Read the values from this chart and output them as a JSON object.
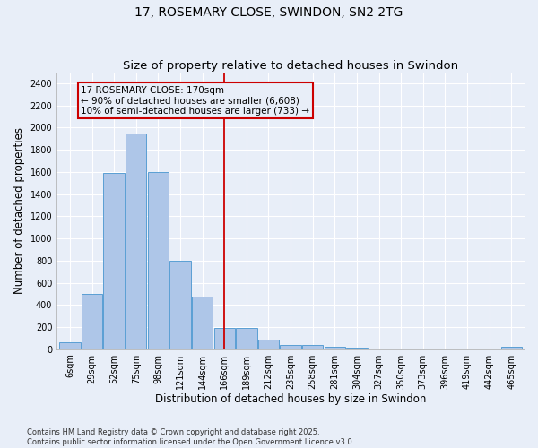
{
  "title": "17, ROSEMARY CLOSE, SWINDON, SN2 2TG",
  "subtitle": "Size of property relative to detached houses in Swindon",
  "xlabel": "Distribution of detached houses by size in Swindon",
  "ylabel": "Number of detached properties",
  "categories": [
    "6sqm",
    "29sqm",
    "52sqm",
    "75sqm",
    "98sqm",
    "121sqm",
    "144sqm",
    "166sqm",
    "189sqm",
    "212sqm",
    "235sqm",
    "258sqm",
    "281sqm",
    "304sqm",
    "327sqm",
    "350sqm",
    "373sqm",
    "396sqm",
    "419sqm",
    "442sqm",
    "465sqm"
  ],
  "values": [
    60,
    500,
    1590,
    1950,
    1600,
    800,
    475,
    190,
    195,
    90,
    40,
    40,
    25,
    15,
    0,
    0,
    0,
    0,
    0,
    0,
    25
  ],
  "bar_color": "#aec6e8",
  "bar_edge_color": "#5a9fd4",
  "vline_index": 7,
  "vline_color": "#cc0000",
  "annotation_text": "17 ROSEMARY CLOSE: 170sqm\n← 90% of detached houses are smaller (6,608)\n10% of semi-detached houses are larger (733) →",
  "annotation_box_color": "#cc0000",
  "annotation_text_color": "#000000",
  "footer_text": "Contains HM Land Registry data © Crown copyright and database right 2025.\nContains public sector information licensed under the Open Government Licence v3.0.",
  "ylim": [
    0,
    2500
  ],
  "yticks": [
    0,
    200,
    400,
    600,
    800,
    1000,
    1200,
    1400,
    1600,
    1800,
    2000,
    2200,
    2400
  ],
  "background_color": "#e8eef8",
  "grid_color": "#ffffff",
  "title_fontsize": 10,
  "subtitle_fontsize": 9.5,
  "axis_label_fontsize": 8.5,
  "tick_fontsize": 7,
  "footer_fontsize": 6,
  "annotation_fontsize": 7.5
}
